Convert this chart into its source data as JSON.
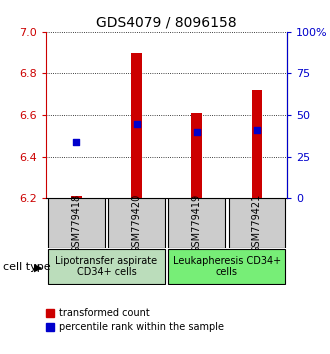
{
  "title": "GDS4079 / 8096158",
  "samples": [
    "GSM779418",
    "GSM779420",
    "GSM779419",
    "GSM779421"
  ],
  "red_values": [
    6.21,
    6.9,
    6.61,
    6.72
  ],
  "blue_values": [
    6.47,
    6.555,
    6.52,
    6.53
  ],
  "y_min": 6.2,
  "y_max": 7.0,
  "y_left_ticks": [
    6.2,
    6.4,
    6.6,
    6.8,
    7.0
  ],
  "y_right_ticks": [
    0,
    25,
    50,
    75,
    100
  ],
  "y_right_labels": [
    "0",
    "25",
    "50",
    "75",
    "100%"
  ],
  "bar_color": "#cc0000",
  "dot_color": "#0000cc",
  "bar_width": 0.18,
  "dot_size": 25,
  "legend_red_label": "transformed count",
  "legend_blue_label": "percentile rank within the sample",
  "title_fontsize": 10,
  "tick_fontsize": 8,
  "sample_fontsize": 7,
  "cell_type_fontsize": 7,
  "legend_fontsize": 7,
  "group1_label": "Lipotransfer aspirate\nCD34+ cells",
  "group2_label": "Leukapheresis CD34+\ncells",
  "group1_color": "#bbddbb",
  "group2_color": "#77ee77",
  "sample_box_color": "#cccccc",
  "cell_type_label": "cell type"
}
